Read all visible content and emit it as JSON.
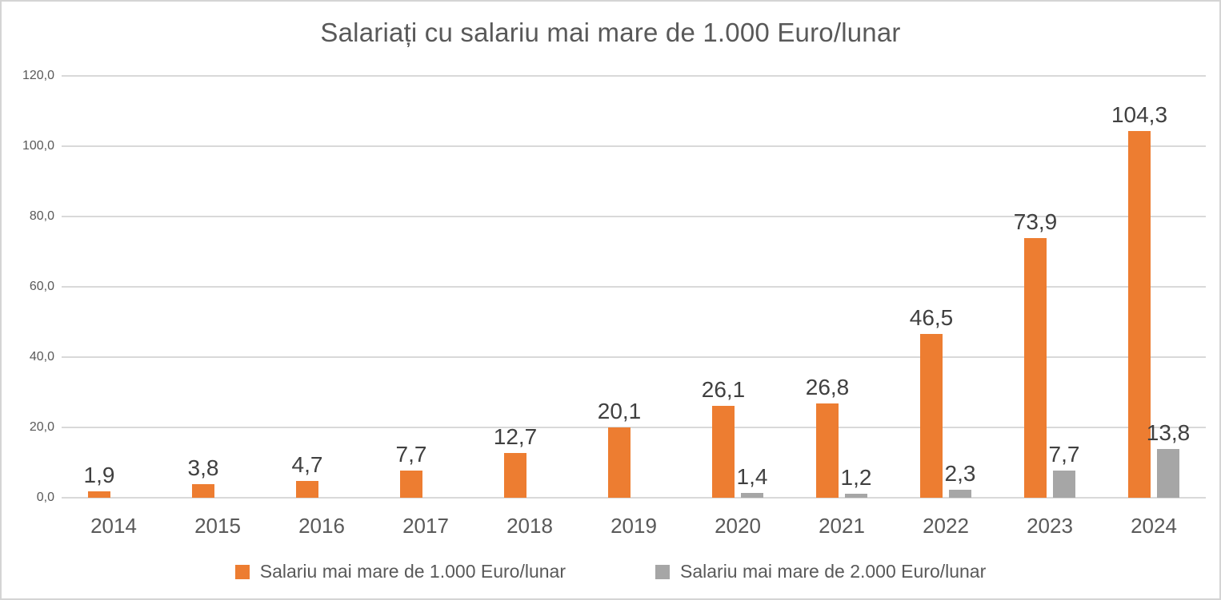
{
  "chart_data": {
    "type": "bar",
    "title": "Salariați cu salariu mai mare de 1.000 Euro/lunar",
    "categories": [
      "2014",
      "2015",
      "2016",
      "2017",
      "2018",
      "2019",
      "2020",
      "2021",
      "2022",
      "2023",
      "2024"
    ],
    "series": [
      {
        "name": "Salariu mai mare de 1.000 Euro/lunar",
        "color": "#ED7D31",
        "values": [
          1.9,
          3.8,
          4.7,
          7.7,
          12.7,
          20.1,
          26.1,
          26.8,
          46.5,
          73.9,
          104.3
        ],
        "labels": [
          "1,9",
          "3,8",
          "4,7",
          "7,7",
          "12,7",
          "20,1",
          "26,1",
          "26,8",
          "46,5",
          "73,9",
          "104,3"
        ]
      },
      {
        "name": "Salariu mai mare de 2.000 Euro/lunar",
        "color": "#A6A6A6",
        "values": [
          null,
          null,
          null,
          null,
          null,
          null,
          1.4,
          1.2,
          2.3,
          7.7,
          13.8
        ],
        "labels": [
          null,
          null,
          null,
          null,
          null,
          null,
          "1,4",
          "1,2",
          "2,3",
          "7,7",
          "13,8"
        ]
      }
    ],
    "xlabel": "",
    "ylabel": "",
    "ylim": [
      0,
      120
    ],
    "ytick_step": 20,
    "ytick_labels": [
      "0,0",
      "20,0",
      "40,0",
      "60,0",
      "80,0",
      "100,0",
      "120,0"
    ],
    "grid": true,
    "gridline_color": "#D9D9D9",
    "legend_position": "bottom",
    "label_color": "#404040",
    "axis_text_color": "#595959",
    "title_color": "#595959",
    "frame_border_color": "#D4D4D4",
    "background_color": "#FFFFFF"
  }
}
